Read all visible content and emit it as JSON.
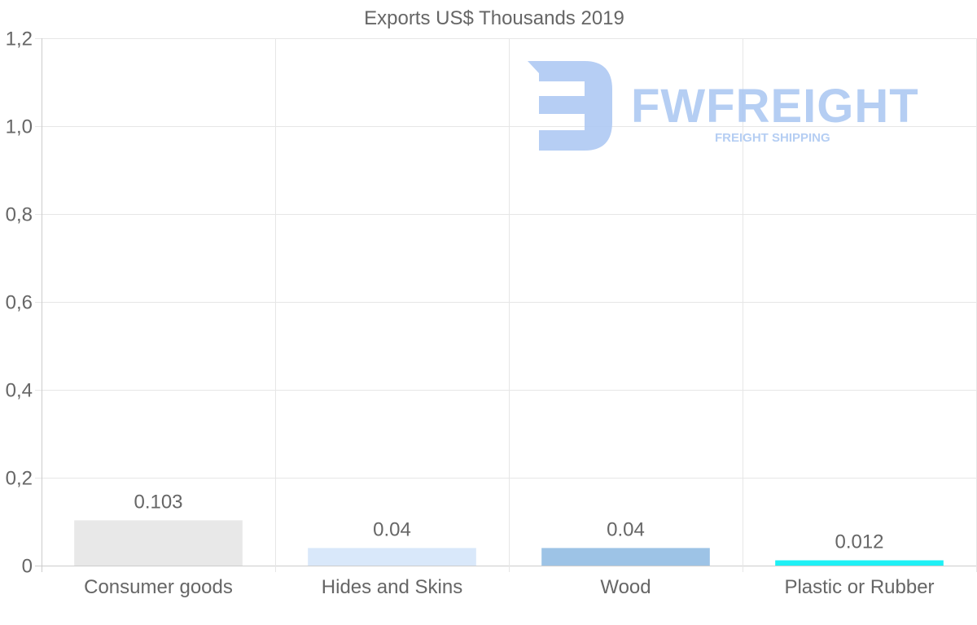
{
  "chart_data": {
    "type": "bar",
    "title": "Exports US$ Thousands 2019",
    "xlabel": "",
    "ylabel": "",
    "categories": [
      "Consumer goods",
      "Hides and Skins",
      "Wood",
      "Plastic or Rubber"
    ],
    "values": [
      0.103,
      0.04,
      0.04,
      0.012
    ],
    "value_labels": [
      "0.103",
      "0.04",
      "0.04",
      "0.012"
    ],
    "bar_colors": [
      "#e8e8e8",
      "#d9e8fa",
      "#9dc3e6",
      "#1ff0f5"
    ],
    "ylim": [
      0,
      1.2
    ],
    "yticks": [
      0,
      0.2,
      0.4,
      0.6,
      0.8,
      1.0,
      1.2
    ],
    "ytick_labels": [
      "0",
      "0,2",
      "0,4",
      "0,6",
      "0,8",
      "1,0",
      "1,2"
    ],
    "grid": true,
    "legend": "none"
  },
  "watermark": {
    "brand": "FWFREIGHT",
    "tagline": "FREIGHT SHIPPING",
    "color": "#a9c6f2"
  },
  "colors": {
    "text": "#666666",
    "grid": "#e6e6e6",
    "axis": "#cccccc"
  }
}
